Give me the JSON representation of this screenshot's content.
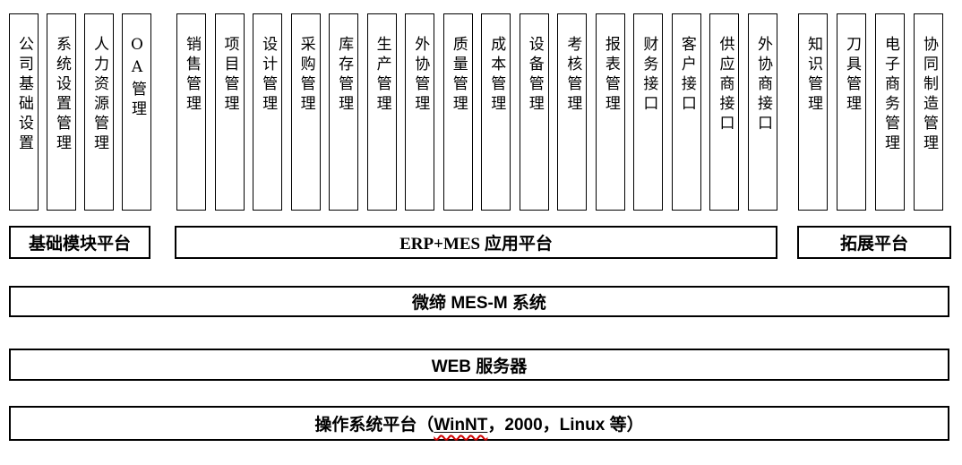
{
  "diagram": {
    "groups": [
      {
        "platform_label": "基础模块平台",
        "columns": [
          "公司基础设置",
          "系统设置管理",
          "人力资源管理",
          "OA管理"
        ]
      },
      {
        "platform_label": "ERP+MES 应用平台",
        "columns": [
          "销售管理",
          "项目管理",
          "设计管理",
          "采购管理",
          "库存管理",
          "生产管理",
          "外协管理",
          "质量管理",
          "成本管理",
          "设备管理",
          "考核管理",
          "报表管理",
          "财务接口",
          "客户接口",
          "供应商接口",
          "外协商接口"
        ]
      },
      {
        "platform_label": "拓展平台",
        "columns": [
          "知识管理",
          "刀具管理",
          "电子商务管理",
          "协同制造管理"
        ]
      }
    ],
    "layers": {
      "mes_system": "微缔 MES-M 系统",
      "web_server": "WEB 服务器",
      "os_prefix": "操作系统平台（",
      "os_winnt": "WinNT",
      "os_suffix": "，2000，Linux 等）"
    },
    "colors": {
      "border": "#000000",
      "background": "#ffffff",
      "text": "#000000",
      "spellcheck_squiggle": "#cc0000"
    }
  }
}
